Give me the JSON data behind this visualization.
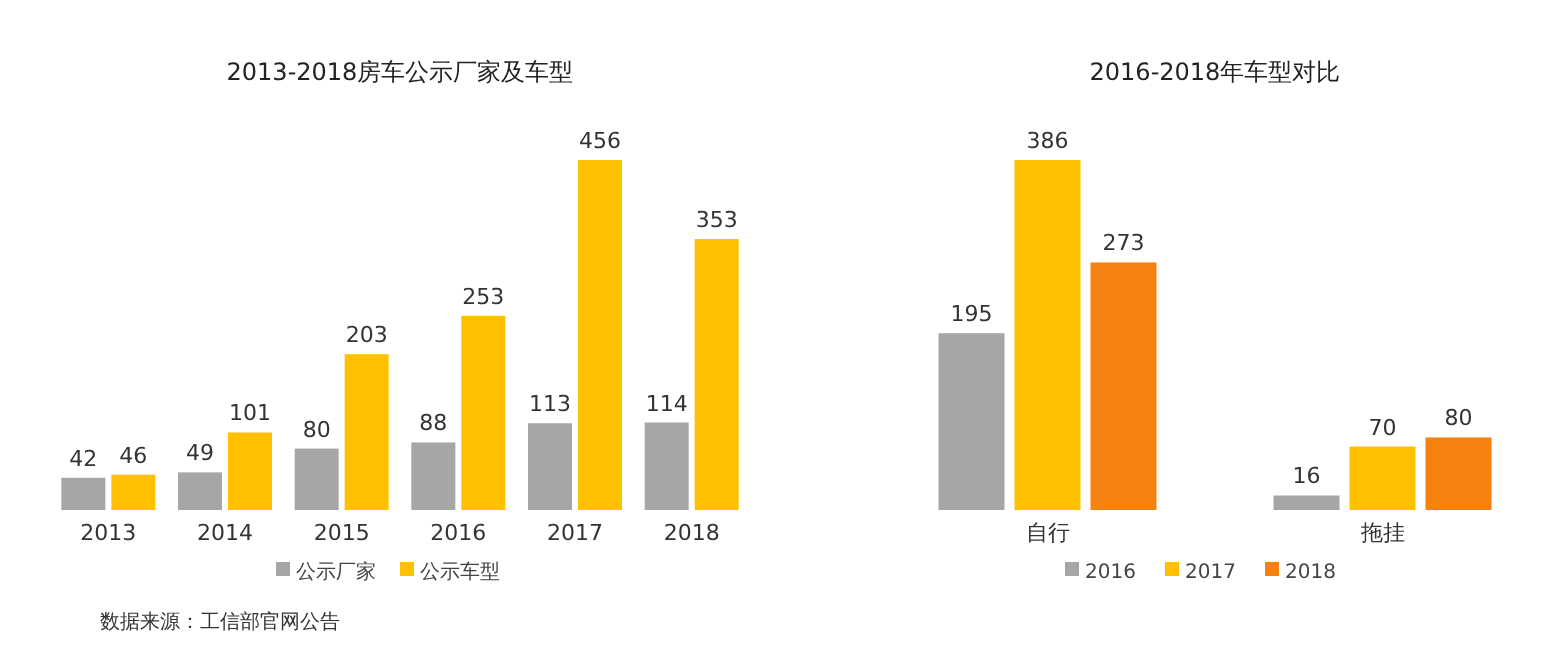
{
  "chart_data": [
    {
      "type": "bar",
      "title": "2013-2018房车公示厂家及车型",
      "categories": [
        "2013",
        "2014",
        "2015",
        "2016",
        "2017",
        "2018"
      ],
      "series": [
        {
          "name": "公示厂家",
          "color": "#a6a6a6",
          "values": [
            42,
            49,
            80,
            88,
            113,
            114
          ]
        },
        {
          "name": "公示车型",
          "color": "#ffc000",
          "values": [
            46,
            101,
            203,
            253,
            456,
            353
          ]
        }
      ],
      "data_labels": true,
      "legend": "bottom",
      "annotations": [
        "数据来源：工信部官网公告"
      ]
    },
    {
      "type": "bar",
      "title": "2016-2018年车型对比",
      "categories": [
        "自行",
        "拖挂"
      ],
      "series": [
        {
          "name": "2016",
          "color": "#a6a6a6",
          "values": [
            195,
            16
          ]
        },
        {
          "name": "2017",
          "color": "#ffc000",
          "values": [
            386,
            70
          ]
        },
        {
          "name": "2018",
          "color": "#f5820f",
          "values": [
            273,
            80
          ]
        }
      ],
      "data_labels": true,
      "legend": "bottom"
    }
  ]
}
